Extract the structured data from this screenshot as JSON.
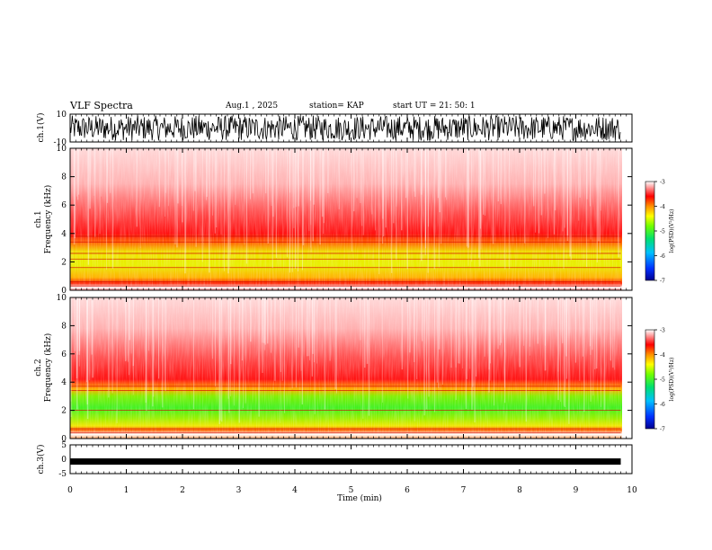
{
  "header": {
    "title": "VLF Spectra",
    "date": "Aug.1 , 2025",
    "station": "station= KAP",
    "start": "start UT = 21: 50: 1"
  },
  "chart_data": [
    {
      "type": "line",
      "name": "ch1-waveform",
      "ylabel": "ch.1(V)",
      "ylim": [
        -10,
        10
      ],
      "yticks": [
        "10",
        "-10"
      ],
      "x_range_min": [
        0,
        9.8
      ],
      "description_values": "dense oscillation spanning approx -9 to +9 V"
    },
    {
      "type": "heatmap",
      "name": "ch1-spectrogram",
      "ylabel": "ch.1 Frequency (kHz)",
      "ylim": [
        0,
        10
      ],
      "yticks": [
        "0",
        "2",
        "4",
        "6",
        "8",
        "10"
      ],
      "x_range_min": [
        0,
        9.8
      ],
      "colorbar": {
        "label": "log(PSD)(V²/Hz)",
        "range": [
          -7,
          -3
        ],
        "ticks": [
          "-3",
          "-4",
          "-5",
          "-6",
          "-7"
        ]
      }
    },
    {
      "type": "heatmap",
      "name": "ch2-spectrogram",
      "ylabel": "ch.2 Frequency (kHz)",
      "ylim": [
        0,
        10
      ],
      "yticks": [
        "0",
        "2",
        "4",
        "6",
        "8",
        "10"
      ],
      "x_range_min": [
        0,
        9.8
      ],
      "colorbar": {
        "label": "log(PSD)(V²/Hz)",
        "range": [
          -7,
          -3
        ],
        "ticks": [
          "-3",
          "-4",
          "-5",
          "-6",
          "-7"
        ]
      }
    },
    {
      "type": "line",
      "name": "ch3-waveform",
      "ylabel": "ch.3(V)",
      "ylim": [
        -5,
        5
      ],
      "yticks": [
        "5",
        "0",
        "-5"
      ],
      "x_range_min": [
        0,
        9.8
      ],
      "level_v": -0.8
    }
  ],
  "xaxis": {
    "label": "Time (min)",
    "range": [
      0,
      10
    ],
    "ticks": [
      "0",
      "1",
      "2",
      "3",
      "4",
      "5",
      "6",
      "7",
      "8",
      "9",
      "10"
    ]
  },
  "colors": {
    "colormap": [
      "#0000a0",
      "#0050ff",
      "#00c8ff",
      "#00e070",
      "#60ff00",
      "#ffff00",
      "#ff9000",
      "#ff0000",
      "#ffffff"
    ]
  }
}
